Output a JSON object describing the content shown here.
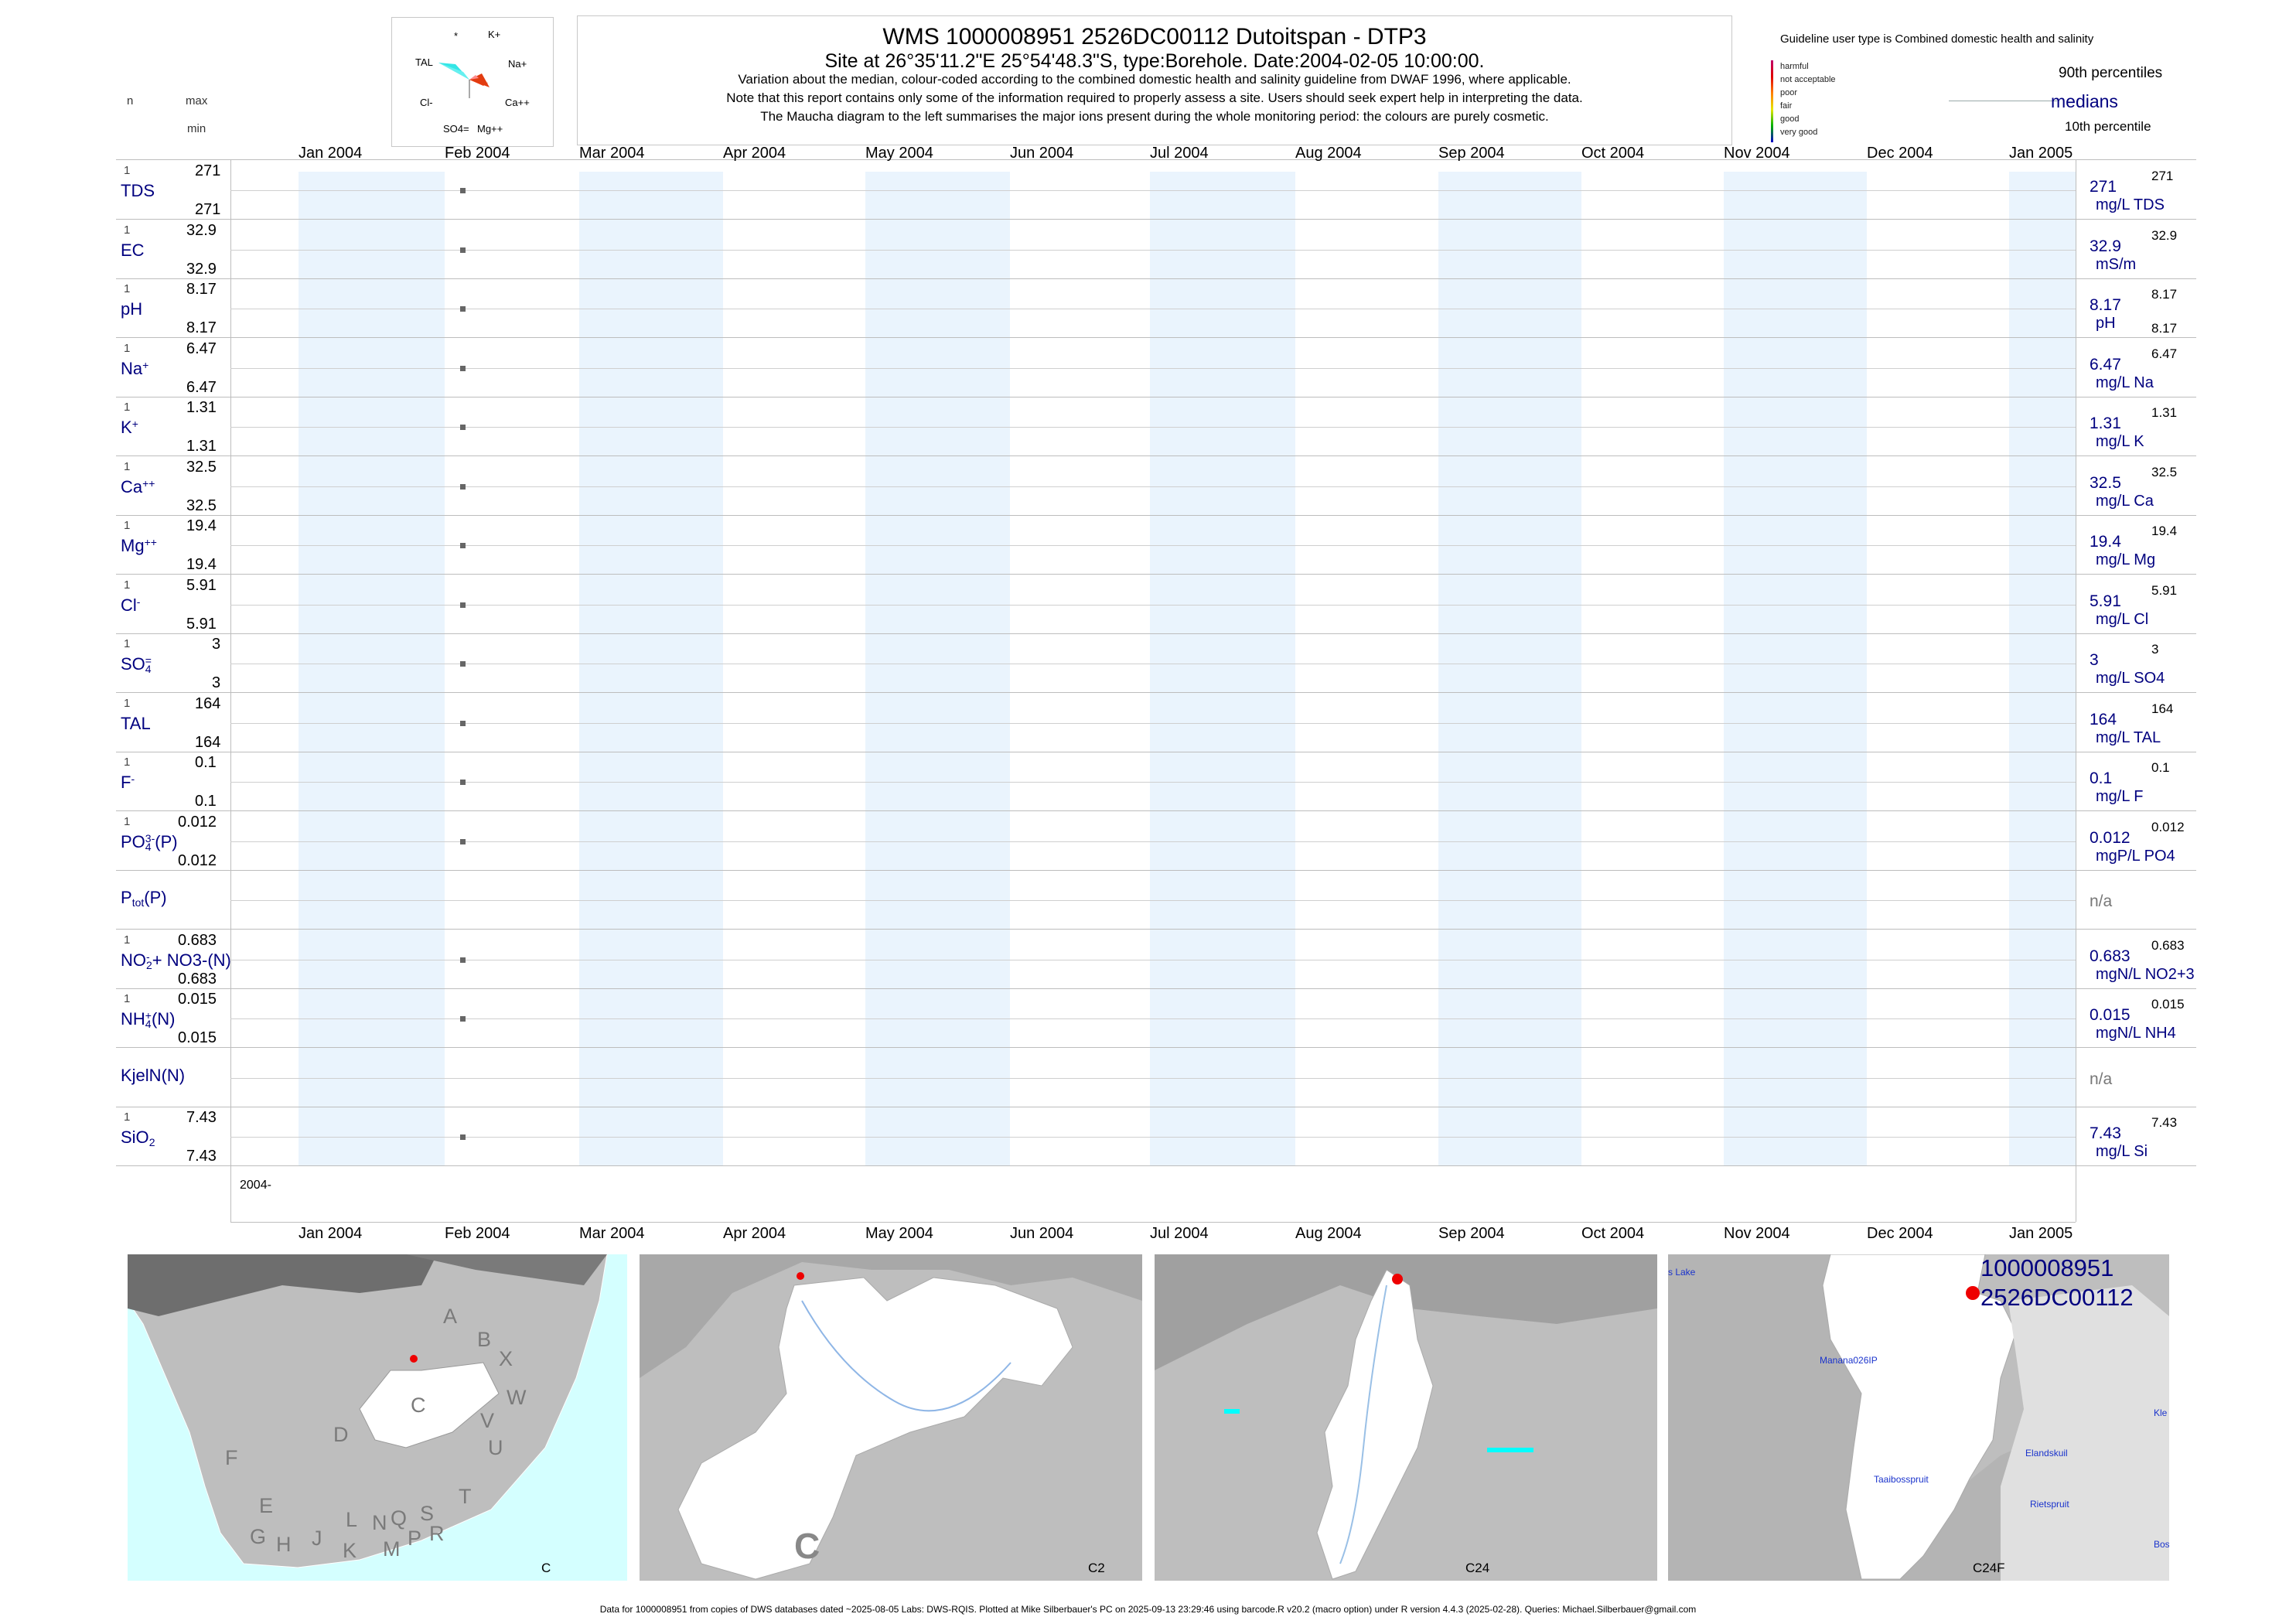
{
  "header": {
    "title": "WMS 1000008951 2526DC00112 Dutoitspan - DTP3",
    "site": "Site at 26°35'11.2\"E 25°54'48.3\"S, type:Borehole. Date:2004-02-05 10:00:00.",
    "note1": "Variation about the median,  colour-coded according to the combined domestic health and salinity guideline from DWAF 1996, where applicable.",
    "note2": "Note that this report contains only some of the information required to properly assess a site. Users should seek expert help in interpreting the data.",
    "note3": "The Maucha diagram to the left summarises the major ions present during the whole monitoring period: the colours are purely cosmetic."
  },
  "left_header": {
    "n": "n",
    "max": "max",
    "min": "min"
  },
  "maucha": {
    "labels": {
      "star": "*",
      "k": "K+",
      "tal": "TAL",
      "na": "Na+",
      "cl": "Cl-",
      "ca": "Ca++",
      "so4": "SO4=",
      "mg": "Mg++"
    },
    "colors": {
      "tal": "#33e6e6",
      "ca": "#f03c14",
      "na": "#ff8c8c",
      "ca_dark": "#b40000"
    }
  },
  "legend": {
    "guideline_title": "Guideline user type is Combined domestic health and salinity",
    "scale": [
      "harmful",
      "not acceptable",
      "poor",
      "fair",
      "good",
      "very good"
    ],
    "scale_colors": [
      "#c0006a",
      "#e00000",
      "#ff7f00",
      "#e6e600",
      "#00b000",
      "#0000c8"
    ],
    "p90": "90th percentiles",
    "medians": "medians",
    "p10": "10th percentile"
  },
  "months": [
    "Jan 2004",
    "Feb 2004",
    "Mar 2004",
    "Apr 2004",
    "May 2004",
    "Jun 2004",
    "Jul 2004",
    "Aug 2004",
    "Sep 2004",
    "Oct 2004",
    "Nov 2004",
    "Dec 2004",
    "Jan 2005"
  ],
  "year_label": "2004-",
  "chart_data": {
    "type": "scatter",
    "x_range": [
      "2004-01-01",
      "2005-01-01"
    ],
    "sample_date": "2004-02-05",
    "series": [
      {
        "key": "TDS",
        "label": "TDS",
        "n": "1",
        "max": "271",
        "min": "271",
        "value": 271,
        "median": "271",
        "unit": "mg/L TDS",
        "p90": "271",
        "p10": ""
      },
      {
        "key": "EC",
        "label": "EC",
        "n": "1",
        "max": "32.9",
        "min": "32.9",
        "value": 32.9,
        "median": "32.9",
        "unit": "mS/m",
        "p90": "32.9",
        "p10": ""
      },
      {
        "key": "pH",
        "label": "pH",
        "n": "1",
        "max": "8.17",
        "min": "8.17",
        "value": 8.17,
        "median": "8.17",
        "unit": "pH",
        "p90": "8.17",
        "p10": "8.17"
      },
      {
        "key": "Na",
        "label": "Na",
        "sup": "+",
        "n": "1",
        "max": "6.47",
        "min": "6.47",
        "value": 6.47,
        "median": "6.47",
        "unit": "mg/L Na",
        "p90": "6.47",
        "p10": ""
      },
      {
        "key": "K",
        "label": "K",
        "sup": "+",
        "n": "1",
        "max": "1.31",
        "min": "1.31",
        "value": 1.31,
        "median": "1.31",
        "unit": "mg/L K",
        "p90": "1.31",
        "p10": ""
      },
      {
        "key": "Ca",
        "label": "Ca",
        "sup": "++",
        "n": "1",
        "max": "32.5",
        "min": "32.5",
        "value": 32.5,
        "median": "32.5",
        "unit": "mg/L Ca",
        "p90": "32.5",
        "p10": ""
      },
      {
        "key": "Mg",
        "label": "Mg",
        "sup": "++",
        "n": "1",
        "max": "19.4",
        "min": "19.4",
        "value": 19.4,
        "median": "19.4",
        "unit": "mg/L Mg",
        "p90": "19.4",
        "p10": ""
      },
      {
        "key": "Cl",
        "label": "Cl",
        "sup": "-",
        "n": "1",
        "max": "5.91",
        "min": "5.91",
        "value": 5.91,
        "median": "5.91",
        "unit": "mg/L Cl",
        "p90": "5.91",
        "p10": ""
      },
      {
        "key": "SO4",
        "label": "SO",
        "sub": "4",
        "sup": "=",
        "n": "1",
        "max": "3",
        "min": "3",
        "value": 3,
        "median": "3",
        "unit": "mg/L SO4",
        "p90": "3",
        "p10": ""
      },
      {
        "key": "TAL",
        "label": "TAL",
        "n": "1",
        "max": "164",
        "min": "164",
        "value": 164,
        "median": "164",
        "unit": "mg/L TAL",
        "p90": "164",
        "p10": ""
      },
      {
        "key": "F",
        "label": "F",
        "sup": "-",
        "n": "1",
        "max": "0.1",
        "min": "0.1",
        "value": 0.1,
        "median": "0.1",
        "unit": "mg/L F",
        "p90": "0.1",
        "p10": ""
      },
      {
        "key": "PO4",
        "label": "PO",
        "sub": "4",
        "sup": "3-",
        "tail": "(P)",
        "n": "1",
        "max": "0.012",
        "min": "0.012",
        "value": 0.012,
        "median": "0.012",
        "unit": "mgP/L PO4",
        "p90": "0.012",
        "p10": ""
      },
      {
        "key": "Ptot",
        "label": "P",
        "sub": "tot",
        "tail": "(P)",
        "n": "",
        "max": "",
        "min": "",
        "value": null,
        "median": "n/a",
        "unit": "",
        "p90": "",
        "p10": ""
      },
      {
        "key": "NO23",
        "label": "NO",
        "sub": "2",
        "sup": "-",
        "tail": "+ NO3-(N)",
        "n": "1",
        "max": "0.683",
        "min": "0.683",
        "value": 0.683,
        "median": "0.683",
        "unit": "mgN/L NO2+3",
        "p90": "0.683",
        "p10": ""
      },
      {
        "key": "NH4",
        "label": "NH",
        "sub": "4",
        "sup": "+",
        "tail": "(N)",
        "n": "1",
        "max": "0.015",
        "min": "0.015",
        "value": 0.015,
        "median": "0.015",
        "unit": "mgN/L NH4",
        "p90": "0.015",
        "p10": ""
      },
      {
        "key": "KjelN",
        "label": "KjelN(N)",
        "n": "",
        "max": "",
        "min": "",
        "value": null,
        "median": "n/a",
        "unit": "",
        "p90": "",
        "p10": ""
      },
      {
        "key": "SiO2",
        "label": "SiO",
        "sub": "2",
        "n": "1",
        "max": "7.43",
        "min": "7.43",
        "value": 7.43,
        "median": "7.43",
        "unit": "mg/L Si",
        "p90": "7.43",
        "p10": ""
      }
    ]
  },
  "maps": {
    "m1": {
      "caption": "C",
      "regions": [
        "A",
        "B",
        "X",
        "W",
        "C",
        "V",
        "D",
        "U",
        "F",
        "T",
        "E",
        "L",
        "N",
        "Q",
        "S",
        "G",
        "H",
        "J",
        "K",
        "M",
        "P",
        "R"
      ],
      "sea_color": "#d4ffff",
      "land_color": "#bebebe"
    },
    "m2": {
      "caption": "C2",
      "big_label": "C"
    },
    "m3": {
      "caption": "C24"
    },
    "m4": {
      "caption": "C24F",
      "id1": "1000008951",
      "id2": "2526DC00112",
      "places": [
        "s Lake",
        "Manana026IP",
        "Taaibosspruit",
        "Elandskuil",
        "Rietspruit",
        "Kle",
        "Bos"
      ]
    }
  },
  "footer": "Data for 1000008951 from copies of DWS databases dated ~2025-08-05 Labs: DWS-RQIS. Plotted at Mike Silberbauer's PC on 2025-09-13 23:29:46 using barcode.R v20.2 (macro option) under R version 4.4.3 (2025-02-28). Queries: Michael.Silberbauer@gmail.com"
}
